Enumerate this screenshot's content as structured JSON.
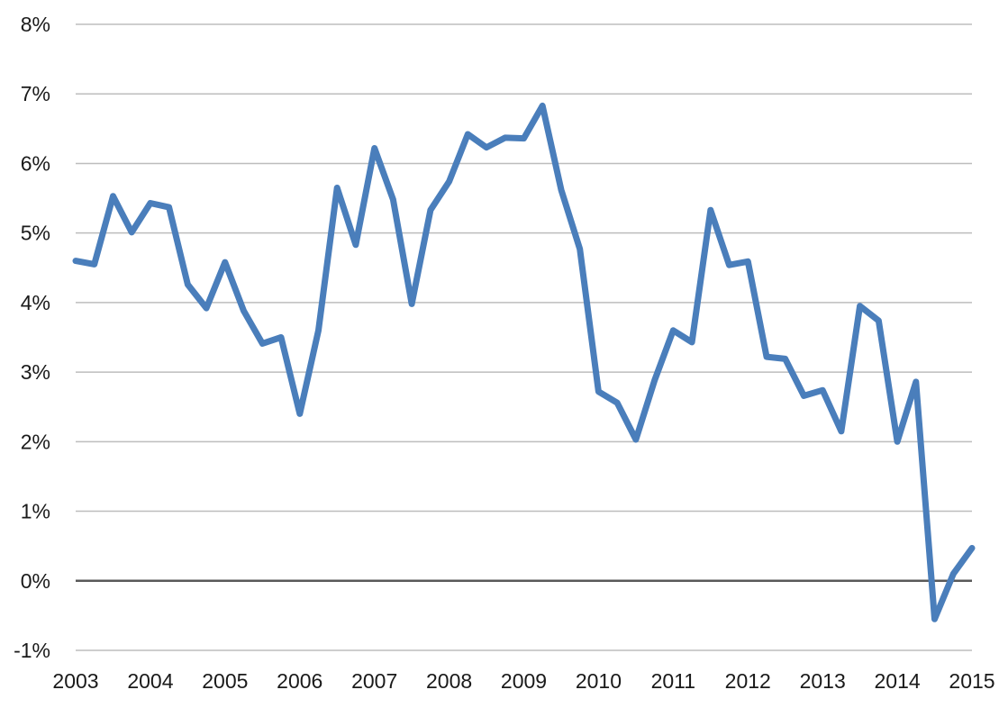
{
  "chart_data": {
    "type": "line",
    "title": "",
    "xlabel": "",
    "ylabel": "",
    "ylim": [
      -1,
      8
    ],
    "xlim": [
      2003,
      2015
    ],
    "grid": true,
    "legend": "none",
    "y_ticks": [
      {
        "value": -1,
        "label": "-1%"
      },
      {
        "value": 0,
        "label": "0%"
      },
      {
        "value": 1,
        "label": "1%"
      },
      {
        "value": 2,
        "label": "2%"
      },
      {
        "value": 3,
        "label": "3%"
      },
      {
        "value": 4,
        "label": "4%"
      },
      {
        "value": 5,
        "label": "5%"
      },
      {
        "value": 6,
        "label": "6%"
      },
      {
        "value": 7,
        "label": "7%"
      },
      {
        "value": 8,
        "label": "8%"
      }
    ],
    "x_ticks": [
      {
        "value": 2003,
        "label": "2003"
      },
      {
        "value": 2004,
        "label": "2004"
      },
      {
        "value": 2005,
        "label": "2005"
      },
      {
        "value": 2006,
        "label": "2006"
      },
      {
        "value": 2007,
        "label": "2007"
      },
      {
        "value": 2008,
        "label": "2008"
      },
      {
        "value": 2009,
        "label": "2009"
      },
      {
        "value": 2010,
        "label": "2010"
      },
      {
        "value": 2011,
        "label": "2011"
      },
      {
        "value": 2012,
        "label": "2012"
      },
      {
        "value": 2013,
        "label": "2013"
      },
      {
        "value": 2014,
        "label": "2014"
      },
      {
        "value": 2015,
        "label": "2015"
      }
    ],
    "series": [
      {
        "color": "#4a7ebb",
        "x": [
          2003.0,
          2003.25,
          2003.5,
          2003.75,
          2004.0,
          2004.25,
          2004.5,
          2004.75,
          2005.0,
          2005.25,
          2005.5,
          2005.75,
          2006.0,
          2006.25,
          2006.5,
          2006.75,
          2007.0,
          2007.25,
          2007.5,
          2007.75,
          2008.0,
          2008.25,
          2008.5,
          2008.75,
          2009.0,
          2009.25,
          2009.5,
          2009.75,
          2010.0,
          2010.25,
          2010.5,
          2010.75,
          2011.0,
          2011.25,
          2011.5,
          2011.75,
          2012.0,
          2012.25,
          2012.5,
          2012.75,
          2013.0,
          2013.25,
          2013.5,
          2013.75,
          2014.0,
          2014.25,
          2014.5,
          2014.75,
          2015.0
        ],
        "values": [
          4.6,
          4.55,
          5.53,
          5.01,
          5.43,
          5.37,
          4.26,
          3.92,
          4.58,
          3.88,
          3.41,
          3.5,
          2.4,
          3.6,
          5.65,
          4.83,
          6.22,
          5.48,
          3.98,
          5.33,
          5.74,
          6.42,
          6.23,
          6.37,
          6.36,
          6.83,
          5.62,
          4.77,
          2.72,
          2.56,
          2.03,
          2.88,
          3.6,
          3.43,
          5.33,
          4.54,
          4.59,
          3.22,
          3.19,
          2.66,
          2.74,
          2.15,
          3.95,
          3.74,
          2.0,
          2.86,
          -0.55,
          0.1,
          0.47
        ]
      }
    ]
  }
}
